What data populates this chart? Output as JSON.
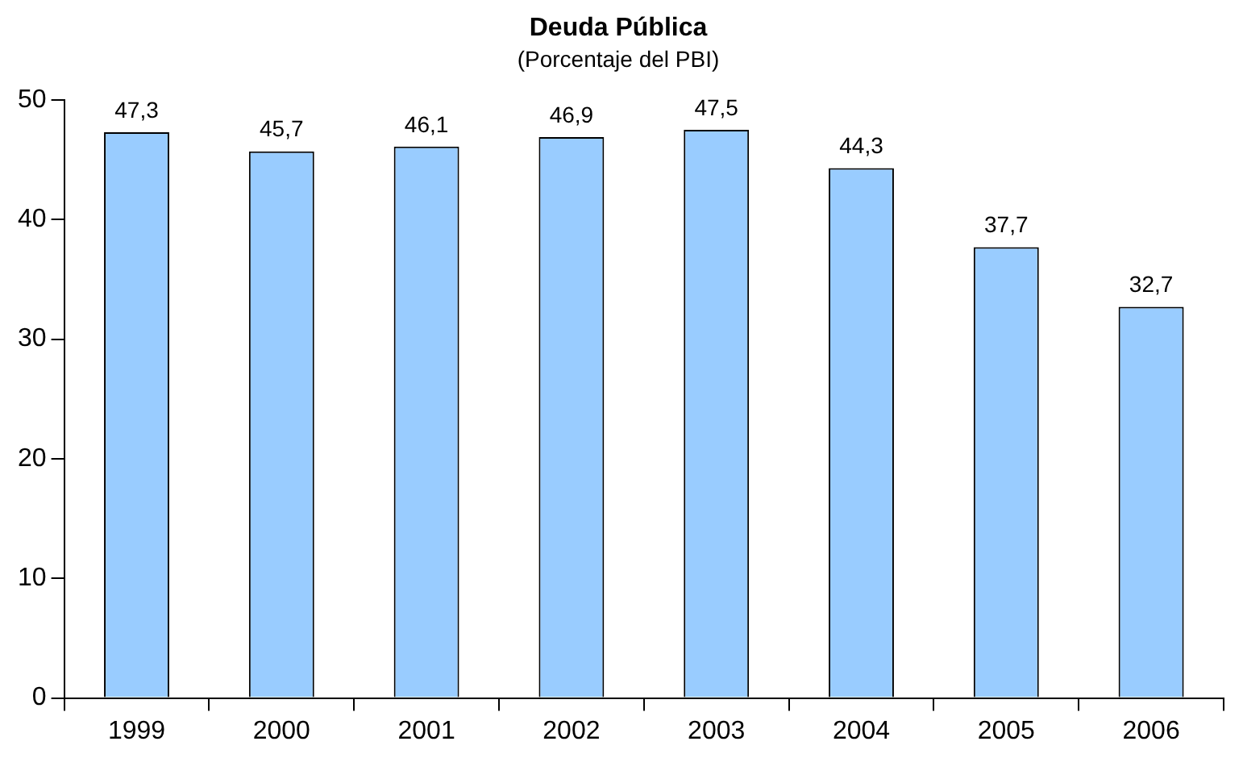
{
  "chart_data": {
    "type": "bar",
    "title": "Deuda Pública",
    "subtitle": "(Porcentaje del PBI)",
    "categories": [
      "1999",
      "2000",
      "2001",
      "2002",
      "2003",
      "2004",
      "2005",
      "2006"
    ],
    "values": [
      47.3,
      45.7,
      46.1,
      46.9,
      47.5,
      44.3,
      37.7,
      32.7
    ],
    "value_labels": [
      "47,3",
      "45,7",
      "46,1",
      "46,9",
      "47,5",
      "44,3",
      "37,7",
      "32,7"
    ],
    "color": "#99ccff",
    "ylim": [
      0,
      50
    ],
    "yticks": [
      0,
      10,
      20,
      30,
      40,
      50
    ],
    "grid": false,
    "legend": false
  }
}
